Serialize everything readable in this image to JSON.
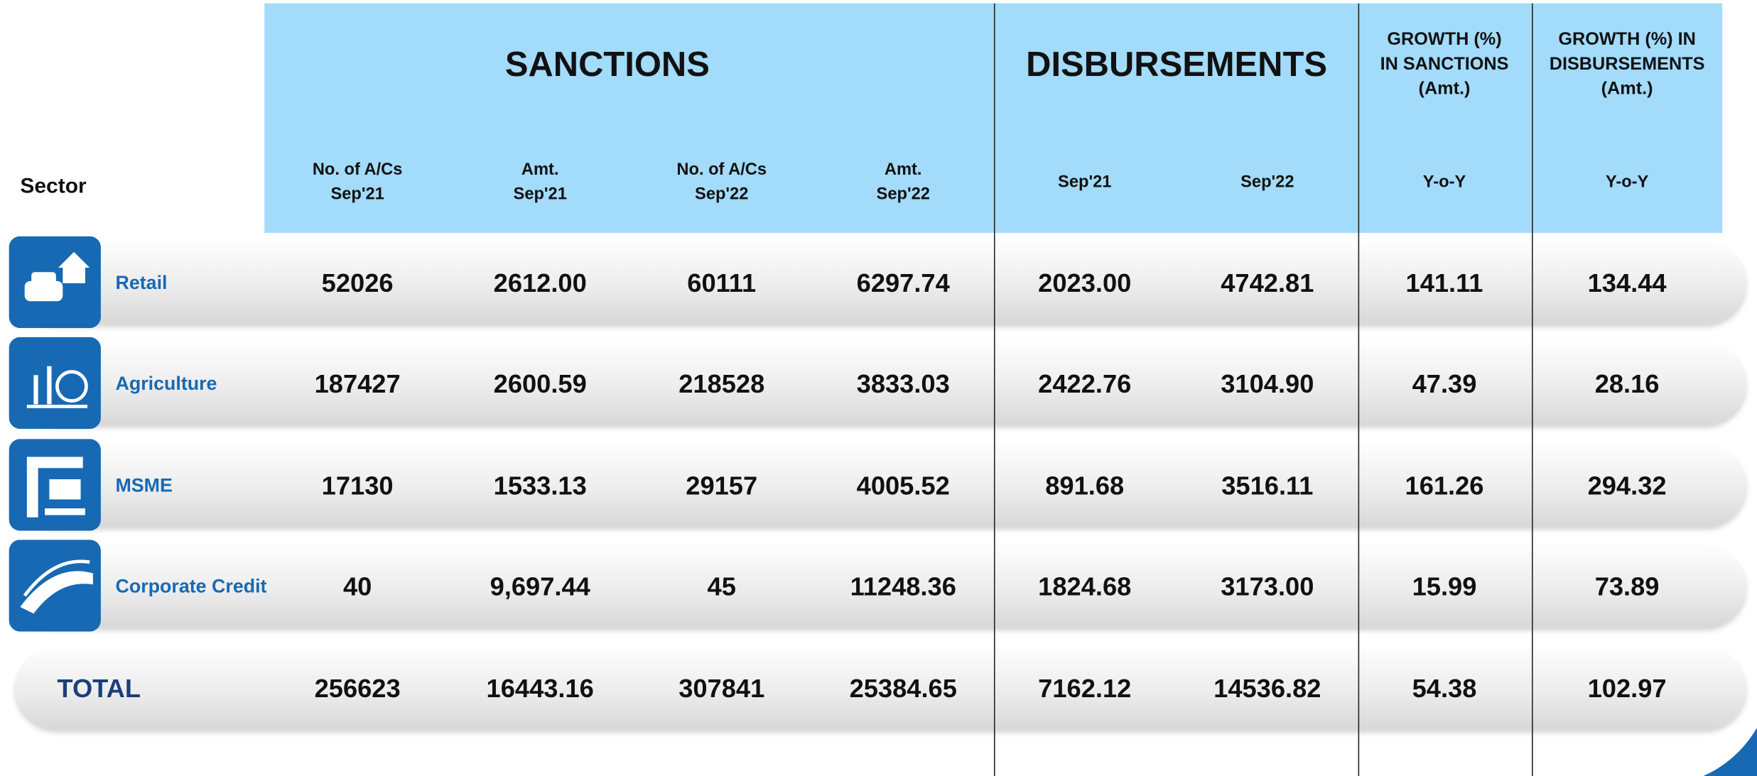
{
  "table": {
    "sector_label": "Sector",
    "groups": [
      "SANCTIONS",
      "DISBURSEMENTS",
      "GROWTH (%)\nIN SANCTIONS\n(Amt.)",
      "GROWTH (%) IN\nDISBURSEMENTS\n(Amt.)"
    ],
    "columns": [
      "No. of A/Cs\nSep'21",
      "Amt.\nSep'21",
      "No. of A/Cs\nSep'22",
      "Amt.\nSep'22",
      "Sep'21",
      "Sep'22",
      "Y-o-Y",
      "Y-o-Y"
    ],
    "rows": [
      [
        "Retail",
        "52026",
        "2612.00",
        "60111",
        "6297.74",
        "2023.00",
        "4742.81",
        "141.11",
        "134.44"
      ],
      [
        "Agriculture",
        "187427",
        "2600.59",
        "218528",
        "3833.03",
        "2422.76",
        "3104.90",
        "47.39",
        "28.16"
      ],
      [
        "MSME",
        "17130",
        "1533.13",
        "29157",
        "4005.52",
        "891.68",
        "3516.11",
        "161.26",
        "294.32"
      ],
      [
        "Corporate Credit",
        "40",
        "9,697.44",
        "45",
        "11248.36",
        "1824.68",
        "3173.00",
        "15.99",
        "73.89"
      ],
      [
        "TOTAL",
        "256623",
        "16443.16",
        "307841",
        "25384.65",
        "7162.12",
        "14536.82",
        "54.38",
        "102.97"
      ]
    ]
  }
}
